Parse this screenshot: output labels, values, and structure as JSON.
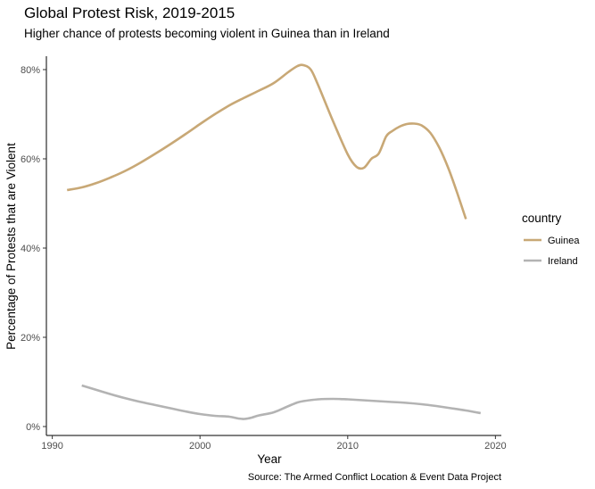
{
  "chart_data": {
    "type": "line",
    "title": "Global Protest Risk, 2019-2015",
    "subtitle": "Higher chance of protests becoming violent in Guinea than in Ireland",
    "caption": "Source: The Armed Conflict Location & Event Data Project",
    "xlabel": "Year",
    "ylabel": "Percentage of Protests that are Violent",
    "xlim": [
      1989.6,
      2020.4
    ],
    "ylim": [
      -2,
      83
    ],
    "x_ticks": [
      1990,
      2000,
      2010,
      2020
    ],
    "x_tick_labels": [
      "1990",
      "2000",
      "2010",
      "2020"
    ],
    "y_ticks": [
      0,
      20,
      40,
      60,
      80
    ],
    "y_tick_labels": [
      "0%",
      "20%",
      "40%",
      "60%",
      "80%"
    ],
    "grid": false,
    "legend": {
      "title": "country",
      "position": "right"
    },
    "series": [
      {
        "name": "Guinea",
        "color": "#C8A876",
        "points": [
          [
            1991,
            53.0
          ],
          [
            1992,
            53.6
          ],
          [
            1993,
            54.6
          ],
          [
            1994,
            55.9
          ],
          [
            1995,
            57.4
          ],
          [
            1996,
            59.2
          ],
          [
            1997,
            61.2
          ],
          [
            1998,
            63.3
          ],
          [
            1999,
            65.5
          ],
          [
            2000,
            67.8
          ],
          [
            2001,
            70.0
          ],
          [
            2002,
            72.0
          ],
          [
            2003,
            73.7
          ],
          [
            2004,
            75.3
          ],
          [
            2005,
            77.0
          ],
          [
            2006,
            79.5
          ],
          [
            2006.6,
            80.8
          ],
          [
            2007,
            81.0
          ],
          [
            2007.5,
            80.0
          ],
          [
            2008,
            76.5
          ],
          [
            2009,
            68.5
          ],
          [
            2010,
            61.0
          ],
          [
            2010.6,
            58.2
          ],
          [
            2011.1,
            58.0
          ],
          [
            2011.6,
            60.0
          ],
          [
            2012.1,
            61.2
          ],
          [
            2012.6,
            65.0
          ],
          [
            2013,
            66.2
          ],
          [
            2013.5,
            67.2
          ],
          [
            2014,
            67.8
          ],
          [
            2014.5,
            67.9
          ],
          [
            2015,
            67.5
          ],
          [
            2015.6,
            65.8
          ],
          [
            2016.2,
            62.5
          ],
          [
            2016.8,
            58.0
          ],
          [
            2017.4,
            52.5
          ],
          [
            2018,
            46.5
          ]
        ]
      },
      {
        "name": "Ireland",
        "color": "#B3B3B3",
        "points": [
          [
            1992,
            9.2
          ],
          [
            1993,
            8.2
          ],
          [
            1994,
            7.2
          ],
          [
            1995,
            6.3
          ],
          [
            1996,
            5.5
          ],
          [
            1997,
            4.8
          ],
          [
            1998,
            4.1
          ],
          [
            1999,
            3.4
          ],
          [
            2000,
            2.8
          ],
          [
            2001,
            2.4
          ],
          [
            2002,
            2.2
          ],
          [
            2002.6,
            1.8
          ],
          [
            2003,
            1.7
          ],
          [
            2003.5,
            2.0
          ],
          [
            2004,
            2.5
          ],
          [
            2005,
            3.2
          ],
          [
            2006,
            4.6
          ],
          [
            2006.6,
            5.4
          ],
          [
            2007,
            5.7
          ],
          [
            2008,
            6.1
          ],
          [
            2009,
            6.2
          ],
          [
            2010,
            6.1
          ],
          [
            2011,
            5.9
          ],
          [
            2012,
            5.7
          ],
          [
            2013,
            5.5
          ],
          [
            2014,
            5.3
          ],
          [
            2015,
            5.0
          ],
          [
            2016,
            4.6
          ],
          [
            2017,
            4.1
          ],
          [
            2018,
            3.6
          ],
          [
            2019,
            3.0
          ]
        ]
      }
    ]
  }
}
